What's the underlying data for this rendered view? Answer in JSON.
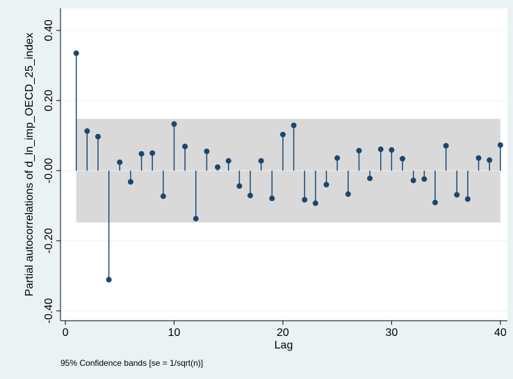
{
  "chart_data": {
    "type": "pacf",
    "xlabel": "Lag",
    "ylabel": "Partial autocorrelations of d_ln_imp_OECD_25_index",
    "note": "95% Confidence bands [se = 1/sqrt(n)]",
    "x": [
      1,
      2,
      3,
      4,
      5,
      6,
      7,
      8,
      9,
      10,
      11,
      12,
      13,
      14,
      15,
      16,
      17,
      18,
      19,
      20,
      21,
      22,
      23,
      24,
      25,
      26,
      27,
      28,
      29,
      30,
      31,
      32,
      33,
      34,
      35,
      36,
      37,
      38,
      39,
      40
    ],
    "values": [
      0.335,
      0.113,
      0.097,
      -0.311,
      0.024,
      -0.032,
      0.048,
      0.05,
      -0.073,
      0.133,
      0.069,
      -0.137,
      0.055,
      0.01,
      0.028,
      -0.044,
      -0.071,
      0.028,
      -0.079,
      0.103,
      0.129,
      -0.083,
      -0.093,
      -0.04,
      0.036,
      -0.067,
      0.057,
      -0.022,
      0.061,
      0.059,
      0.034,
      -0.028,
      -0.024,
      -0.091,
      0.071,
      -0.069,
      -0.081,
      0.036,
      0.03,
      0.073
    ],
    "ci_upper": 0.148,
    "ci_lower": -0.148,
    "color": "#1a476f",
    "band_color": "#d9d9d9",
    "xlim": [
      -0.45,
      40.65
    ],
    "xticks": [
      0,
      10,
      20,
      30,
      40
    ],
    "ylim": [
      -0.428,
      0.463
    ],
    "yticks": [
      {
        "value": -0.4,
        "label": "-0.40"
      },
      {
        "value": -0.2,
        "label": "-0.20"
      },
      {
        "value": 0,
        "label": "-0.00"
      },
      {
        "value": 0.2,
        "label": "0.20"
      },
      {
        "value": 0.4,
        "label": "0.40"
      }
    ],
    "grid": true
  }
}
